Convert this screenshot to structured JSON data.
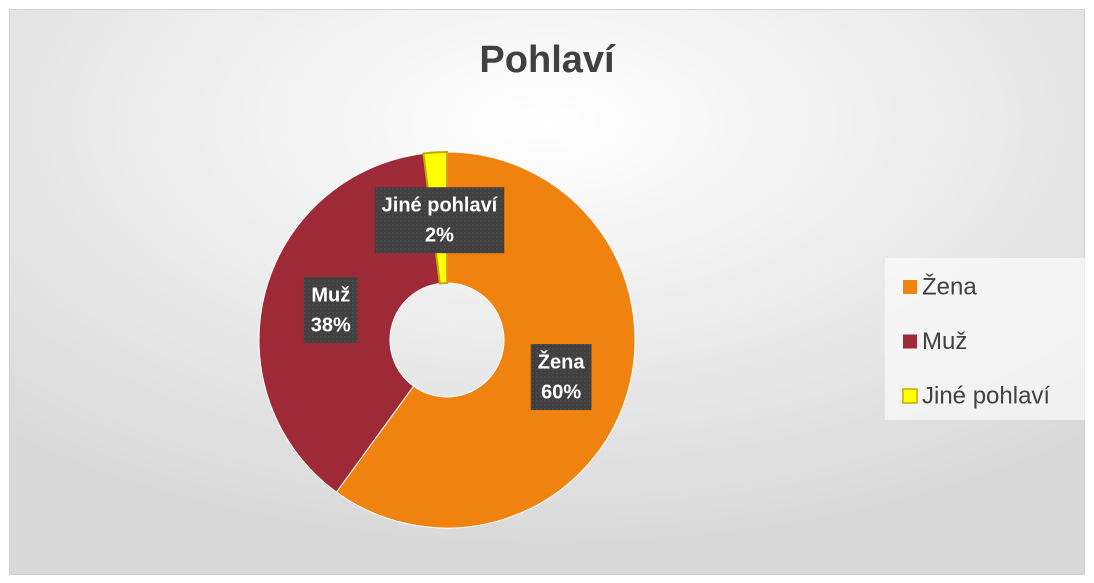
{
  "chart_data": {
    "type": "doughnut",
    "title": "Pohlaví",
    "categories": [
      "Žena",
      "Muž",
      "Jiné pohlaví"
    ],
    "values": [
      60,
      38,
      2
    ],
    "value_labels": [
      "60%",
      "38%",
      "2%"
    ],
    "colors": [
      "#f0820f",
      "#9e2a37",
      "#ffff00"
    ],
    "legend": "right"
  }
}
